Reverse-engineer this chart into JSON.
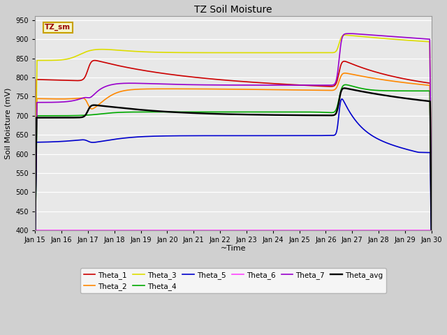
{
  "title": "TZ Soil Moisture",
  "xlabel": "~Time",
  "ylabel": "Soil Moisture (mV)",
  "ylim": [
    400,
    960
  ],
  "yticks": [
    400,
    450,
    500,
    550,
    600,
    650,
    700,
    750,
    800,
    850,
    900,
    950
  ],
  "xtick_labels": [
    "Jan 15",
    "Jan 16",
    "Jan 17",
    "Jan 18",
    "Jan 19",
    "Jan 20",
    "Jan 21",
    "Jan 22",
    "Jan 23",
    "Jan 24",
    "Jan 25",
    "Jan 26",
    "Jan 27",
    "Jan 28",
    "Jan 29",
    "Jan 30"
  ],
  "fig_bg": "#d0d0d0",
  "plot_bg": "#e8e8e8",
  "legend_box_color": "#f5f5c8",
  "legend_box_border": "#c8a000",
  "legend_box_text": "TZ_sm",
  "series_colors": {
    "Theta_1": "#cc0000",
    "Theta_2": "#ff8800",
    "Theta_3": "#dddd00",
    "Theta_4": "#00aa00",
    "Theta_5": "#0000cc",
    "Theta_6": "#ff44ff",
    "Theta_7": "#9900cc",
    "Theta_avg": "#000000"
  },
  "line_width": 1.2
}
